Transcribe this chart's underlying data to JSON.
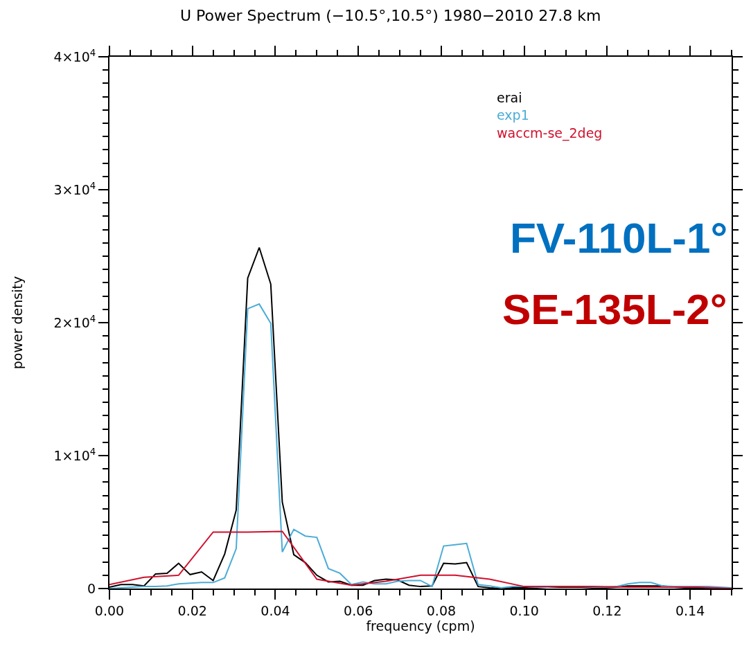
{
  "chart_data": {
    "type": "line",
    "title": "U Power Spectrum (−10.5°,10.5°) 1980−2010 27.8 km",
    "xlabel": "frequency (cpm)",
    "ylabel": "power density",
    "xlim": [
      0,
      0.15
    ],
    "xticks": [
      {
        "value": 0,
        "label": "0.00"
      },
      {
        "value": 0.02,
        "label": "0.02"
      },
      {
        "value": 0.04,
        "label": "0.04"
      },
      {
        "value": 0.06,
        "label": "0.06"
      },
      {
        "value": 0.08,
        "label": "0.08"
      },
      {
        "value": 0.1,
        "label": "0.10"
      },
      {
        "value": 0.12,
        "label": "0.12"
      },
      {
        "value": 0.14,
        "label": "0.14"
      }
    ],
    "ylim": [
      0,
      40000
    ],
    "yticks": [
      0,
      {
        "value": 10000,
        "label": "1×10$^{4}$"
      },
      {
        "value": 20000,
        "label": "2×10$^{4}$"
      },
      {
        "value": 30000,
        "label": "3×10$^{4}$"
      },
      {
        "value": 40000,
        "label": "4×10$^{4}$"
      }
    ],
    "legend": "top right",
    "marker": "none",
    "line_style": "solid",
    "series": [
      {
        "name": "erai",
        "color": "#000000",
        "x": [
          0,
          0.00278,
          0.00556,
          0.00833,
          0.01111,
          0.01389,
          0.01667,
          0.01944,
          0.02222,
          0.025,
          0.02778,
          0.03056,
          0.03333,
          0.03611,
          0.03889,
          0.04167,
          0.04444,
          0.04722,
          0.05,
          0.05278,
          0.05556,
          0.05833,
          0.06111,
          0.06389,
          0.06667,
          0.06944,
          0.07222,
          0.075,
          0.07778,
          0.08056,
          0.08333,
          0.08611,
          0.08889,
          0.09167,
          0.09444,
          0.09722,
          0.1,
          0.10278,
          0.10556,
          0.10833,
          0.11111,
          0.11389,
          0.11667,
          0.11944,
          0.12222,
          0.125,
          0.12778,
          0.13056,
          0.13333,
          0.13611,
          0.13889,
          0.14167,
          0.14444,
          0.14722,
          0.15
        ],
        "values": [
          100,
          300,
          300,
          200,
          1100,
          1150,
          1900,
          1050,
          1250,
          600,
          2600,
          5900,
          23350,
          25650,
          22900,
          6500,
          2550,
          1950,
          1000,
          500,
          550,
          250,
          250,
          600,
          700,
          650,
          250,
          150,
          200,
          1900,
          1850,
          1950,
          150,
          50,
          0,
          50,
          50,
          50,
          100,
          100,
          100,
          100,
          50,
          50,
          100,
          200,
          200,
          200,
          200,
          100,
          50,
          50,
          50,
          50,
          0
        ]
      },
      {
        "name": "exp1",
        "color": "#4bacd6",
        "x": [
          0,
          0.00278,
          0.00556,
          0.00833,
          0.01111,
          0.01389,
          0.01667,
          0.01944,
          0.02222,
          0.025,
          0.02778,
          0.03056,
          0.03333,
          0.03611,
          0.03889,
          0.04167,
          0.04444,
          0.04722,
          0.05,
          0.05278,
          0.05556,
          0.05833,
          0.06111,
          0.06389,
          0.06667,
          0.06944,
          0.07222,
          0.075,
          0.07778,
          0.08056,
          0.08333,
          0.08611,
          0.08889,
          0.09167,
          0.09444,
          0.09722,
          0.1,
          0.10278,
          0.10556,
          0.10833,
          0.11111,
          0.11389,
          0.11667,
          0.11944,
          0.12222,
          0.125,
          0.12778,
          0.13056,
          0.13333,
          0.13611,
          0.13889,
          0.14167,
          0.14444,
          0.14722,
          0.15
        ],
        "values": [
          0,
          50,
          100,
          150,
          150,
          200,
          350,
          400,
          450,
          450,
          800,
          3000,
          21050,
          21400,
          19950,
          2750,
          4450,
          3950,
          3850,
          1500,
          1150,
          300,
          500,
          350,
          350,
          550,
          600,
          600,
          150,
          3200,
          3300,
          3400,
          300,
          200,
          50,
          150,
          150,
          100,
          100,
          150,
          150,
          150,
          100,
          100,
          150,
          350,
          450,
          450,
          200,
          150,
          150,
          150,
          150,
          100,
          50
        ]
      },
      {
        "name": "waccm-se_2deg",
        "color": "#d0102c",
        "x": [
          0,
          0.00833,
          0.01667,
          0.025,
          0.03333,
          0.04167,
          0.05,
          0.05833,
          0.06667,
          0.075,
          0.08333,
          0.09167,
          0.1,
          0.10833,
          0.11667,
          0.125,
          0.13333,
          0.14167,
          0.15
        ],
        "values": [
          300,
          850,
          1000,
          4250,
          4250,
          4300,
          700,
          250,
          550,
          1000,
          1000,
          700,
          150,
          150,
          150,
          100,
          100,
          100,
          0
        ]
      }
    ],
    "annotations": [
      "FV-110L-1°",
      "SE-135L-2°"
    ]
  }
}
